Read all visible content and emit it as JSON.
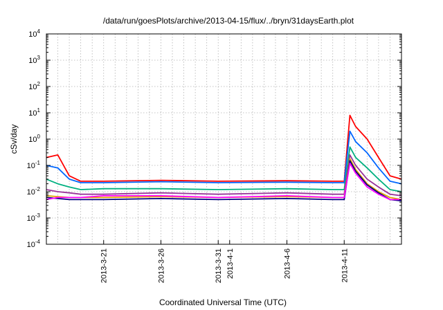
{
  "chart_data": {
    "type": "line",
    "title": "/data/run/goesPlots/archive/2013-04-15/flux/../bryn/31daysEarth.plot",
    "xlabel": "Coordinated Universal Time (UTC)",
    "ylabel": "cSv/day",
    "y_scale": "log",
    "ylim": [
      0.0001,
      10000
    ],
    "xlim": [
      "2013-03-16",
      "2013-04-16"
    ],
    "grid": true,
    "legend": "none",
    "y_ticks": [
      {
        "mant": "10",
        "exp": "-4",
        "value": 0.0001
      },
      {
        "mant": "10",
        "exp": "-3",
        "value": 0.001
      },
      {
        "mant": "10",
        "exp": "-2",
        "value": 0.01
      },
      {
        "mant": "10",
        "exp": "-1",
        "value": 0.1
      },
      {
        "mant": "10",
        "exp": "0",
        "value": 1
      },
      {
        "mant": "10",
        "exp": "1",
        "value": 10
      },
      {
        "mant": "10",
        "exp": "2",
        "value": 100
      },
      {
        "mant": "10",
        "exp": "3",
        "value": 1000
      },
      {
        "mant": "10",
        "exp": "4",
        "value": 10000
      }
    ],
    "x_ticks": [
      {
        "label": "2013-3-21",
        "date": "2013-03-21"
      },
      {
        "label": "2013-3-26",
        "date": "2013-03-26"
      },
      {
        "label": "2013-3-31",
        "date": "2013-03-31"
      },
      {
        "label": "2013-4-1",
        "date": "2013-04-01"
      },
      {
        "label": "2013-4-6",
        "date": "2013-04-06"
      },
      {
        "label": "2013-4-11",
        "date": "2013-04-11"
      }
    ],
    "series": [
      {
        "color": "#ff0000",
        "x": [
          "2013-03-16",
          "2013-03-17",
          "2013-03-18",
          "2013-03-19",
          "2013-03-21",
          "2013-03-26",
          "2013-03-31",
          "2013-04-06",
          "2013-04-10",
          "2013-04-11",
          "2013-04-11.5",
          "2013-04-12",
          "2013-04-13",
          "2013-04-14",
          "2013-04-15",
          "2013-04-16"
        ],
        "values": [
          0.2,
          0.25,
          0.04,
          0.025,
          0.025,
          0.027,
          0.025,
          0.026,
          0.025,
          0.025,
          8.0,
          3.0,
          1.0,
          0.2,
          0.04,
          0.03
        ]
      },
      {
        "color": "#0066ff",
        "x": [
          "2013-03-16",
          "2013-03-17",
          "2013-03-18",
          "2013-03-19",
          "2013-03-21",
          "2013-03-26",
          "2013-03-31",
          "2013-04-06",
          "2013-04-10",
          "2013-04-11",
          "2013-04-11.5",
          "2013-04-12",
          "2013-04-13",
          "2013-04-14",
          "2013-04-15",
          "2013-04-16"
        ],
        "values": [
          0.1,
          0.08,
          0.03,
          0.022,
          0.022,
          0.024,
          0.022,
          0.023,
          0.022,
          0.022,
          2.0,
          0.8,
          0.3,
          0.08,
          0.025,
          0.02
        ]
      },
      {
        "color": "#00b080",
        "x": [
          "2013-03-16",
          "2013-03-17",
          "2013-03-18",
          "2013-03-19",
          "2013-03-21",
          "2013-03-26",
          "2013-03-31",
          "2013-04-06",
          "2013-04-10",
          "2013-04-11",
          "2013-04-11.5",
          "2013-04-12",
          "2013-04-13",
          "2013-04-14",
          "2013-04-15",
          "2013-04-16"
        ],
        "values": [
          0.03,
          0.02,
          0.015,
          0.012,
          0.013,
          0.013,
          0.012,
          0.013,
          0.012,
          0.012,
          0.5,
          0.2,
          0.08,
          0.03,
          0.012,
          0.01
        ]
      },
      {
        "color": "#993399",
        "x": [
          "2013-03-16",
          "2013-03-17",
          "2013-03-18",
          "2013-03-19",
          "2013-03-21",
          "2013-03-26",
          "2013-03-31",
          "2013-04-06",
          "2013-04-10",
          "2013-04-11",
          "2013-04-11.5",
          "2013-04-12",
          "2013-04-13",
          "2013-04-14",
          "2013-04-15",
          "2013-04-16"
        ],
        "values": [
          0.012,
          0.01,
          0.009,
          0.008,
          0.008,
          0.009,
          0.008,
          0.009,
          0.008,
          0.008,
          0.25,
          0.1,
          0.03,
          0.015,
          0.008,
          0.007
        ]
      },
      {
        "color": "#e0a000",
        "x": [
          "2013-03-16",
          "2013-03-17",
          "2013-03-18",
          "2013-03-19",
          "2013-03-21",
          "2013-03-26",
          "2013-03-31",
          "2013-04-06",
          "2013-04-10",
          "2013-04-11",
          "2013-04-11.5",
          "2013-04-12",
          "2013-04-13",
          "2013-04-14",
          "2013-04-15",
          "2013-04-16"
        ],
        "values": [
          0.007,
          0.0065,
          0.006,
          0.006,
          0.006,
          0.0065,
          0.006,
          0.0065,
          0.006,
          0.006,
          0.18,
          0.07,
          0.02,
          0.01,
          0.006,
          0.005
        ]
      },
      {
        "color": "#000080",
        "x": [
          "2013-03-16",
          "2013-03-17",
          "2013-03-18",
          "2013-03-19",
          "2013-03-21",
          "2013-03-26",
          "2013-03-31",
          "2013-04-06",
          "2013-04-10",
          "2013-04-11",
          "2013-04-11.5",
          "2013-04-12",
          "2013-04-13",
          "2013-04-14",
          "2013-04-15",
          "2013-04-16"
        ],
        "values": [
          0.006,
          0.0055,
          0.005,
          0.005,
          0.005,
          0.0055,
          0.005,
          0.0055,
          0.005,
          0.005,
          0.15,
          0.06,
          0.018,
          0.009,
          0.005,
          0.0045
        ]
      },
      {
        "color": "#ff00ff",
        "x": [
          "2013-03-16",
          "2013-03-17",
          "2013-03-18",
          "2013-03-19",
          "2013-03-21",
          "2013-03-26",
          "2013-03-31",
          "2013-04-06",
          "2013-04-10",
          "2013-04-11",
          "2013-04-11.5",
          "2013-04-12",
          "2013-04-13",
          "2013-04-14",
          "2013-04-15",
          "2013-04-16"
        ],
        "values": [
          0.005,
          0.006,
          0.006,
          0.006,
          0.007,
          0.007,
          0.006,
          0.007,
          0.006,
          0.006,
          0.12,
          0.05,
          0.015,
          0.008,
          0.005,
          0.005
        ]
      }
    ]
  }
}
